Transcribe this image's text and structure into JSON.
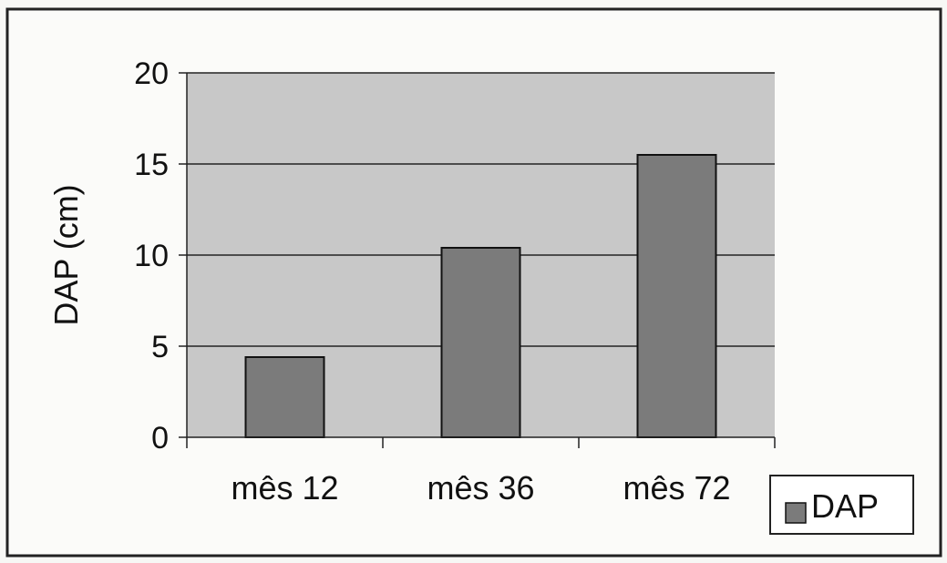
{
  "colors": {
    "plot_background": "#c8c8c8",
    "bar_fill": "#7b7b7b",
    "bar_stroke": "#111111",
    "frame": "#222222"
  },
  "chart_data": {
    "type": "bar",
    "categories": [
      "mês 12",
      "mês 36",
      "mês 72"
    ],
    "series": [
      {
        "name": "DAP",
        "values": [
          4.4,
          10.4,
          15.5
        ]
      }
    ],
    "title": "",
    "xlabel": "",
    "ylabel": "DAP (cm)",
    "ylim": [
      0,
      20
    ],
    "yticks": [
      "0",
      "5",
      "10",
      "15",
      "20"
    ],
    "grid": true,
    "legend": {
      "position": "bottom-right",
      "items": [
        "DAP"
      ]
    }
  }
}
